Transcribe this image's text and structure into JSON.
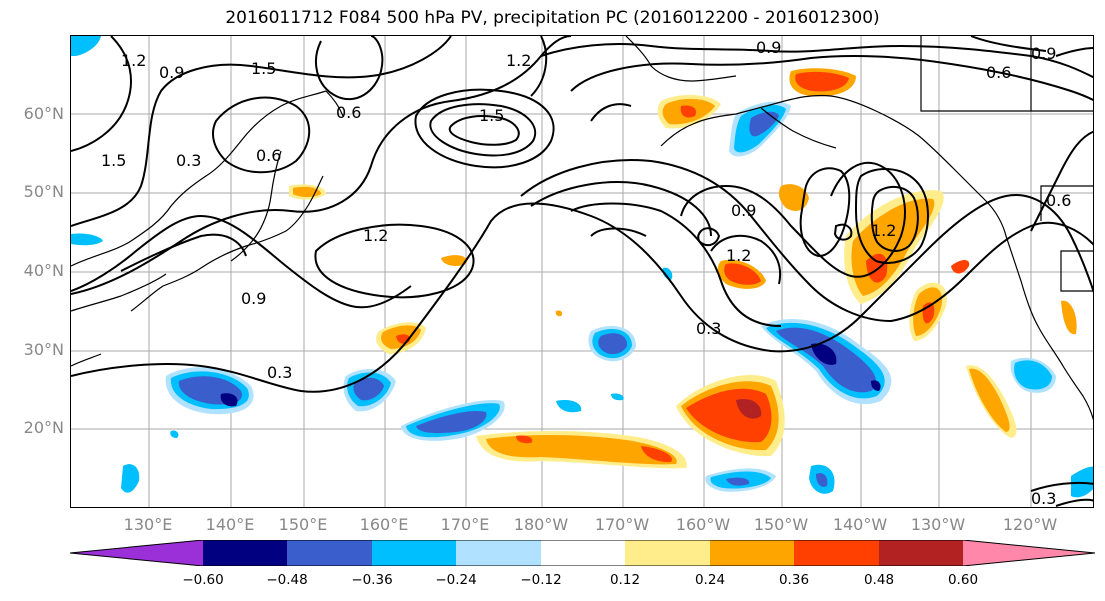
{
  "title": "2016011712 F084 500 hPa PV, precipitation PC (2016012200 - 2016012300)",
  "lat_labels": [
    "60°N",
    "50°N",
    "40°N",
    "30°N",
    "20°N"
  ],
  "lon_labels": [
    "130°E",
    "140°E",
    "150°E",
    "160°E",
    "170°E",
    "180°W",
    "170°W",
    "160°W",
    "150°W",
    "140°W",
    "130°W",
    "120°W"
  ],
  "contour_labels": [
    "1.2",
    "0.9",
    "1.5",
    "0.3",
    "0.6",
    "1.5",
    "0.6",
    "1.2",
    "1.5",
    "0.9",
    "0.9",
    "0.6",
    "0.6",
    "0.9",
    "1.2",
    "1.2",
    "0.9",
    "0.3",
    "0.3",
    "1.2",
    "0.3"
  ],
  "colorbar": {
    "colors": [
      "#9b30d9",
      "#000080",
      "#3a5fcd",
      "#00bfff",
      "#b0e2ff",
      "#ffffff",
      "#ffec8b",
      "#ffa500",
      "#ff4000",
      "#b22222",
      "#ff88aa"
    ],
    "ticks": [
      "−0.60",
      "−0.48",
      "−0.36",
      "−0.24",
      "−0.12",
      "0.12",
      "0.24",
      "0.36",
      "0.48",
      "0.60"
    ]
  }
}
